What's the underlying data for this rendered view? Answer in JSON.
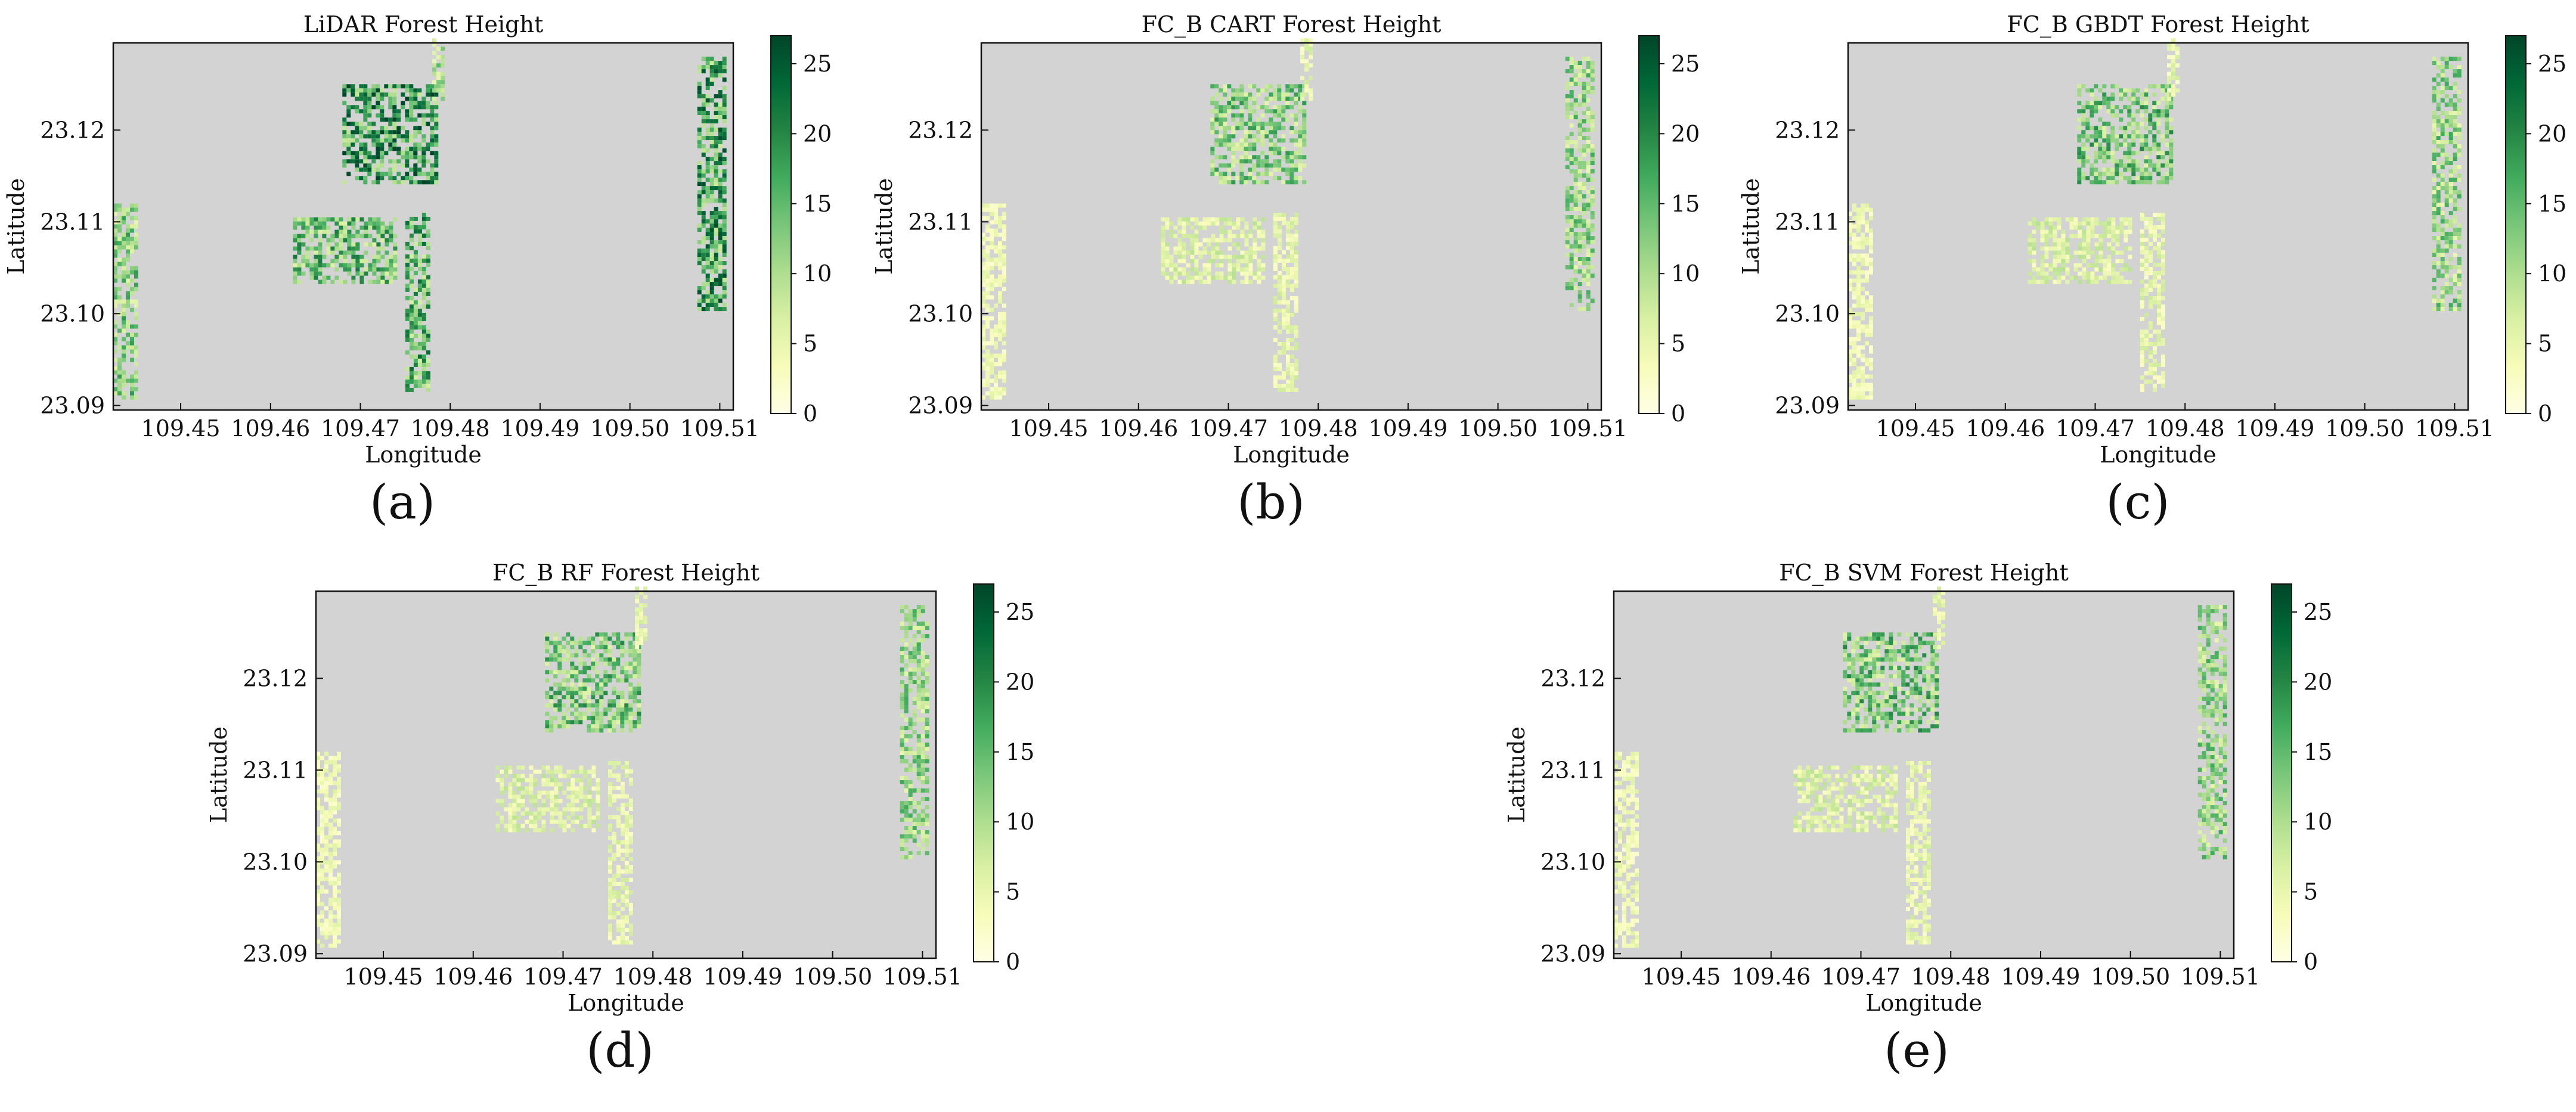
{
  "figure": {
    "panel_labels": [
      "(a)",
      "(b)",
      "(c)",
      "(d)",
      "(e)"
    ]
  },
  "colors": {
    "background": "#d3d3d3",
    "colormap": [
      "#ffffe5",
      "#f7fcb9",
      "#d9f0a3",
      "#addd8e",
      "#78c679",
      "#41ab5d",
      "#238443",
      "#006837",
      "#004529"
    ],
    "axis": "#111111"
  },
  "chart_data": [
    {
      "type": "heatmap",
      "title": "LiDAR Forest Height",
      "xlabel": "Longitude",
      "ylabel": "Latitude",
      "xticks": [
        "109.45",
        "109.46",
        "109.47",
        "109.48",
        "109.49",
        "109.50",
        "109.51"
      ],
      "yticks": [
        "23.09",
        "23.10",
        "23.11",
        "23.12"
      ],
      "xlim": [
        109.4425,
        109.5115
      ],
      "ylim": [
        23.0895,
        23.1295
      ],
      "colorbar": {
        "ticks": [
          "0",
          "5",
          "10",
          "15",
          "20",
          "25"
        ],
        "range": [
          0,
          27
        ],
        "cmap": "YlGn"
      },
      "patches": [
        {
          "lon": [
            109.468,
            109.479
          ],
          "lat": [
            23.114,
            23.125
          ],
          "mean_height": 18
        },
        {
          "lon": [
            109.4625,
            109.4745
          ],
          "lat": [
            23.103,
            23.1105
          ],
          "mean_height": 14
        },
        {
          "lon": [
            109.475,
            109.478
          ],
          "lat": [
            23.091,
            23.111
          ],
          "mean_height": 15
        },
        {
          "lon": [
            109.478,
            109.4795
          ],
          "lat": [
            23.123,
            23.13
          ],
          "mean_height": 10
        },
        {
          "lon": [
            109.5075,
            109.511
          ],
          "lat": [
            23.1,
            23.128
          ],
          "mean_height": 17
        },
        {
          "lon": [
            109.4425,
            109.4455
          ],
          "lat": [
            23.0905,
            23.112
          ],
          "mean_height": 12
        }
      ]
    },
    {
      "type": "heatmap",
      "title": "FC_B CART Forest Height",
      "xlabel": "Longitude",
      "ylabel": "Latitude",
      "xticks": [
        "109.45",
        "109.46",
        "109.47",
        "109.48",
        "109.49",
        "109.50",
        "109.51"
      ],
      "yticks": [
        "23.09",
        "23.10",
        "23.11",
        "23.12"
      ],
      "xlim": [
        109.4425,
        109.5115
      ],
      "ylim": [
        23.0895,
        23.1295
      ],
      "colorbar": {
        "ticks": [
          "0",
          "5",
          "10",
          "15",
          "20",
          "25"
        ],
        "range": [
          0,
          27
        ],
        "cmap": "YlGn"
      },
      "patches": [
        {
          "lon": [
            109.468,
            109.479
          ],
          "lat": [
            23.114,
            23.125
          ],
          "mean_height": 12
        },
        {
          "lon": [
            109.4625,
            109.4745
          ],
          "lat": [
            23.103,
            23.1105
          ],
          "mean_height": 6
        },
        {
          "lon": [
            109.475,
            109.478
          ],
          "lat": [
            23.091,
            23.111
          ],
          "mean_height": 5
        },
        {
          "lon": [
            109.478,
            109.4795
          ],
          "lat": [
            23.123,
            23.13
          ],
          "mean_height": 5
        },
        {
          "lon": [
            109.5075,
            109.511
          ],
          "lat": [
            23.1,
            23.128
          ],
          "mean_height": 11
        },
        {
          "lon": [
            109.4425,
            109.4455
          ],
          "lat": [
            23.0905,
            23.112
          ],
          "mean_height": 4
        }
      ]
    },
    {
      "type": "heatmap",
      "title": "FC_B GBDT Forest Height",
      "xlabel": "Longitude",
      "ylabel": "Latitude",
      "xticks": [
        "109.45",
        "109.46",
        "109.47",
        "109.48",
        "109.49",
        "109.50",
        "109.51"
      ],
      "yticks": [
        "23.09",
        "23.10",
        "23.11",
        "23.12"
      ],
      "xlim": [
        109.4425,
        109.5115
      ],
      "ylim": [
        23.0895,
        23.1295
      ],
      "colorbar": {
        "ticks": [
          "0",
          "5",
          "10",
          "15",
          "20",
          "25"
        ],
        "range": [
          0,
          27
        ],
        "cmap": "YlGn"
      },
      "patches": [
        {
          "lon": [
            109.468,
            109.479
          ],
          "lat": [
            23.114,
            23.125
          ],
          "mean_height": 13
        },
        {
          "lon": [
            109.4625,
            109.4745
          ],
          "lat": [
            23.103,
            23.1105
          ],
          "mean_height": 6
        },
        {
          "lon": [
            109.475,
            109.478
          ],
          "lat": [
            23.091,
            23.111
          ],
          "mean_height": 5
        },
        {
          "lon": [
            109.478,
            109.4795
          ],
          "lat": [
            23.123,
            23.13
          ],
          "mean_height": 5
        },
        {
          "lon": [
            109.5075,
            109.511
          ],
          "lat": [
            23.1,
            23.128
          ],
          "mean_height": 11
        },
        {
          "lon": [
            109.4425,
            109.4455
          ],
          "lat": [
            23.0905,
            23.112
          ],
          "mean_height": 4
        }
      ]
    },
    {
      "type": "heatmap",
      "title": "FC_B RF Forest Height",
      "xlabel": "Longitude",
      "ylabel": "Latitude",
      "xticks": [
        "109.45",
        "109.46",
        "109.47",
        "109.48",
        "109.49",
        "109.50",
        "109.51"
      ],
      "yticks": [
        "23.09",
        "23.10",
        "23.11",
        "23.12"
      ],
      "xlim": [
        109.4425,
        109.5115
      ],
      "ylim": [
        23.0895,
        23.1295
      ],
      "colorbar": {
        "ticks": [
          "0",
          "5",
          "10",
          "15",
          "20",
          "25"
        ],
        "range": [
          0,
          27
        ],
        "cmap": "YlGn"
      },
      "patches": [
        {
          "lon": [
            109.468,
            109.479
          ],
          "lat": [
            23.114,
            23.125
          ],
          "mean_height": 13
        },
        {
          "lon": [
            109.4625,
            109.4745
          ],
          "lat": [
            23.103,
            23.1105
          ],
          "mean_height": 6
        },
        {
          "lon": [
            109.475,
            109.478
          ],
          "lat": [
            23.091,
            23.111
          ],
          "mean_height": 5
        },
        {
          "lon": [
            109.478,
            109.4795
          ],
          "lat": [
            23.123,
            23.13
          ],
          "mean_height": 5
        },
        {
          "lon": [
            109.5075,
            109.511
          ],
          "lat": [
            23.1,
            23.128
          ],
          "mean_height": 11
        },
        {
          "lon": [
            109.4425,
            109.4455
          ],
          "lat": [
            23.0905,
            23.112
          ],
          "mean_height": 4
        }
      ]
    },
    {
      "type": "heatmap",
      "title": "FC_B SVM Forest Height",
      "xlabel": "Longitude",
      "ylabel": "Latitude",
      "xticks": [
        "109.45",
        "109.46",
        "109.47",
        "109.48",
        "109.49",
        "109.50",
        "109.51"
      ],
      "yticks": [
        "23.09",
        "23.10",
        "23.11",
        "23.12"
      ],
      "xlim": [
        109.4425,
        109.5115
      ],
      "ylim": [
        23.0895,
        23.1295
      ],
      "colorbar": {
        "ticks": [
          "0",
          "5",
          "10",
          "15",
          "20",
          "25"
        ],
        "range": [
          0,
          27
        ],
        "cmap": "YlGn"
      },
      "patches": [
        {
          "lon": [
            109.468,
            109.479
          ],
          "lat": [
            23.114,
            23.125
          ],
          "mean_height": 13
        },
        {
          "lon": [
            109.4625,
            109.4745
          ],
          "lat": [
            23.103,
            23.1105
          ],
          "mean_height": 6
        },
        {
          "lon": [
            109.475,
            109.478
          ],
          "lat": [
            23.091,
            23.111
          ],
          "mean_height": 5
        },
        {
          "lon": [
            109.478,
            109.4795
          ],
          "lat": [
            23.123,
            23.13
          ],
          "mean_height": 5
        },
        {
          "lon": [
            109.5075,
            109.511
          ],
          "lat": [
            23.1,
            23.128
          ],
          "mean_height": 11
        },
        {
          "lon": [
            109.4425,
            109.4455
          ],
          "lat": [
            23.0905,
            23.112
          ],
          "mean_height": 4
        }
      ]
    }
  ]
}
